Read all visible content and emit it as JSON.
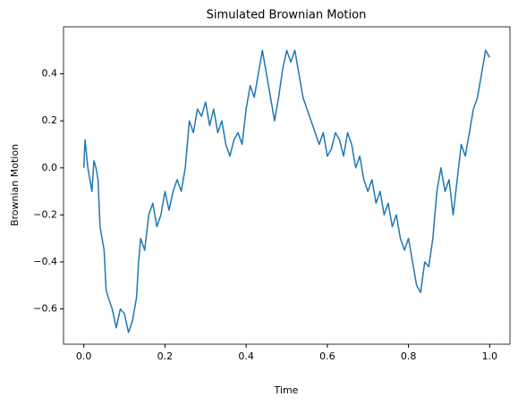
{
  "chart_data": {
    "type": "line",
    "title": "Simulated Brownian Motion",
    "x_label": "Time",
    "y_label": "Brownian Motion",
    "x": [
      0,
      0.003,
      0.01,
      0.02,
      0.025,
      0.03,
      0.035,
      0.04,
      0.05,
      0.055,
      0.06,
      0.07,
      0.08,
      0.09,
      0.1,
      0.11,
      0.12,
      0.13,
      0.135,
      0.14,
      0.15,
      0.16,
      0.17,
      0.18,
      0.19,
      0.2,
      0.21,
      0.22,
      0.23,
      0.24,
      0.25,
      0.26,
      0.27,
      0.28,
      0.29,
      0.3,
      0.31,
      0.32,
      0.33,
      0.34,
      0.35,
      0.36,
      0.37,
      0.38,
      0.39,
      0.4,
      0.41,
      0.42,
      0.43,
      0.44,
      0.45,
      0.46,
      0.47,
      0.48,
      0.49,
      0.5,
      0.51,
      0.52,
      0.53,
      0.54,
      0.55,
      0.56,
      0.57,
      0.58,
      0.59,
      0.6,
      0.61,
      0.62,
      0.63,
      0.64,
      0.65,
      0.66,
      0.67,
      0.68,
      0.69,
      0.7,
      0.71,
      0.72,
      0.73,
      0.74,
      0.75,
      0.76,
      0.77,
      0.78,
      0.79,
      0.8,
      0.81,
      0.82,
      0.83,
      0.84,
      0.85,
      0.86,
      0.87,
      0.88,
      0.89,
      0.9,
      0.91,
      0.92,
      0.93,
      0.94,
      0.95,
      0.96,
      0.97,
      0.98,
      0.99,
      1.0
    ],
    "series": [
      {
        "color": "#1f77b4",
        "values": [
          0.0,
          0.12,
          0.0,
          -0.1,
          0.03,
          0.0,
          -0.05,
          -0.25,
          -0.35,
          -0.52,
          -0.55,
          -0.6,
          -0.68,
          -0.6,
          -0.62,
          -0.7,
          -0.65,
          -0.55,
          -0.4,
          -0.3,
          -0.35,
          -0.2,
          -0.15,
          -0.25,
          -0.2,
          -0.1,
          -0.18,
          -0.1,
          -0.05,
          -0.1,
          0.0,
          0.2,
          0.15,
          0.25,
          0.22,
          0.28,
          0.18,
          0.25,
          0.15,
          0.2,
          0.1,
          0.05,
          0.12,
          0.15,
          0.1,
          0.25,
          0.35,
          0.3,
          0.4,
          0.5,
          0.4,
          0.3,
          0.2,
          0.3,
          0.42,
          0.5,
          0.45,
          0.5,
          0.4,
          0.3,
          0.25,
          0.2,
          0.15,
          0.1,
          0.15,
          0.05,
          0.08,
          0.15,
          0.12,
          0.05,
          0.15,
          0.1,
          0.0,
          0.05,
          -0.05,
          -0.1,
          -0.05,
          -0.15,
          -0.1,
          -0.2,
          -0.15,
          -0.25,
          -0.2,
          -0.3,
          -0.35,
          -0.3,
          -0.4,
          -0.5,
          -0.53,
          -0.4,
          -0.42,
          -0.3,
          -0.1,
          0.0,
          -0.1,
          -0.05,
          -0.2,
          -0.05,
          0.1,
          0.05,
          0.15,
          0.25,
          0.3,
          0.4,
          0.5,
          0.47
        ]
      }
    ],
    "xlim": [
      -0.05,
      1.05
    ],
    "ylim": [
      -0.75,
      0.6
    ],
    "xticks": [
      {
        "value": 0,
        "label": "0.0"
      },
      {
        "value": 0.2,
        "label": "0.2"
      },
      {
        "value": 0.4,
        "label": "0.4"
      },
      {
        "value": 0.6,
        "label": "0.6"
      },
      {
        "value": 0.8,
        "label": "0.8"
      },
      {
        "value": 1,
        "label": "1.0"
      }
    ],
    "yticks": [
      {
        "value": -0.6,
        "label": "−0.6"
      },
      {
        "value": -0.4,
        "label": "−0.4"
      },
      {
        "value": -0.2,
        "label": "−0.2"
      },
      {
        "value": 0,
        "label": "0.0"
      },
      {
        "value": 0.2,
        "label": "0.2"
      },
      {
        "value": 0.4,
        "label": "0.4"
      }
    ]
  }
}
